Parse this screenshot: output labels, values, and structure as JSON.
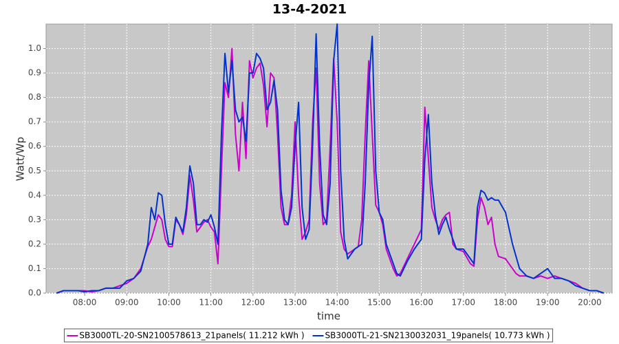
{
  "chart_data": {
    "type": "line",
    "title": "13-4-2021",
    "x_label": "time",
    "y_label": "Watt/Wp",
    "x": [
      440,
      450,
      460,
      470,
      480,
      490,
      500,
      510,
      520,
      530,
      540,
      550,
      560,
      570,
      575,
      580,
      585,
      590,
      595,
      600,
      605,
      610,
      615,
      620,
      625,
      630,
      635,
      640,
      645,
      650,
      655,
      660,
      665,
      670,
      675,
      680,
      685,
      690,
      695,
      700,
      705,
      710,
      715,
      720,
      725,
      730,
      735,
      740,
      745,
      750,
      755,
      760,
      765,
      770,
      775,
      780,
      785,
      790,
      795,
      800,
      805,
      810,
      815,
      820,
      825,
      830,
      835,
      840,
      845,
      850,
      855,
      860,
      865,
      870,
      875,
      880,
      885,
      890,
      895,
      900,
      905,
      910,
      920,
      925,
      930,
      940,
      950,
      960,
      965,
      970,
      975,
      980,
      985,
      990,
      995,
      1000,
      1005,
      1010,
      1020,
      1030,
      1035,
      1040,
      1045,
      1050,
      1055,
      1060,
      1065,
      1070,
      1080,
      1090,
      1095,
      1100,
      1110,
      1120,
      1130,
      1140,
      1150,
      1160,
      1170,
      1180,
      1190,
      1200,
      1210,
      1220
    ],
    "series": [
      {
        "name": "SB3000TL-20-SN2100578613_21panels( 11.212 kWh )",
        "color": "#cc00cc",
        "values": [
          0,
          0.01,
          0.01,
          0.01,
          0.01,
          0.005,
          0.01,
          0.02,
          0.02,
          0.03,
          0.04,
          0.06,
          0.1,
          0.19,
          0.22,
          0.27,
          0.32,
          0.3,
          0.22,
          0.19,
          0.19,
          0.3,
          0.28,
          0.24,
          0.32,
          0.48,
          0.38,
          0.25,
          0.27,
          0.29,
          0.3,
          0.27,
          0.25,
          0.12,
          0.5,
          0.86,
          0.8,
          1.0,
          0.65,
          0.5,
          0.78,
          0.55,
          0.95,
          0.88,
          0.92,
          0.94,
          0.85,
          0.68,
          0.9,
          0.88,
          0.65,
          0.35,
          0.28,
          0.28,
          0.4,
          0.7,
          0.4,
          0.22,
          0.25,
          0.3,
          0.7,
          0.92,
          0.45,
          0.28,
          0.3,
          0.6,
          0.96,
          0.7,
          0.25,
          0.18,
          0.16,
          0.17,
          0.18,
          0.19,
          0.3,
          0.65,
          0.95,
          0.65,
          0.36,
          0.33,
          0.28,
          0.18,
          0.1,
          0.07,
          0.08,
          0.14,
          0.2,
          0.26,
          0.76,
          0.55,
          0.35,
          0.3,
          0.26,
          0.3,
          0.32,
          0.33,
          0.2,
          0.18,
          0.17,
          0.12,
          0.11,
          0.3,
          0.39,
          0.35,
          0.28,
          0.31,
          0.2,
          0.15,
          0.14,
          0.1,
          0.08,
          0.07,
          0.07,
          0.06,
          0.07,
          0.06,
          0.07,
          0.06,
          0.05,
          0.04,
          0.02,
          0.01,
          0.01,
          0
        ]
      },
      {
        "name": "SB3000TL-21-SN2130032031_19panels( 10.773 kWh )",
        "color": "#0033cc",
        "values": [
          0,
          0.01,
          0.01,
          0.01,
          0.005,
          0.01,
          0.01,
          0.02,
          0.02,
          0.02,
          0.05,
          0.06,
          0.09,
          0.2,
          0.35,
          0.3,
          0.41,
          0.4,
          0.28,
          0.2,
          0.2,
          0.31,
          0.28,
          0.25,
          0.35,
          0.52,
          0.45,
          0.28,
          0.28,
          0.3,
          0.29,
          0.32,
          0.27,
          0.2,
          0.65,
          0.98,
          0.82,
          0.95,
          0.75,
          0.7,
          0.72,
          0.62,
          0.9,
          0.9,
          0.98,
          0.96,
          0.92,
          0.75,
          0.78,
          0.87,
          0.75,
          0.42,
          0.3,
          0.28,
          0.35,
          0.6,
          0.78,
          0.35,
          0.22,
          0.26,
          0.6,
          1.06,
          0.6,
          0.32,
          0.28,
          0.45,
          0.95,
          1.1,
          0.5,
          0.22,
          0.14,
          0.16,
          0.18,
          0.19,
          0.2,
          0.45,
          0.85,
          1.05,
          0.5,
          0.33,
          0.3,
          0.2,
          0.12,
          0.08,
          0.07,
          0.13,
          0.18,
          0.22,
          0.55,
          0.73,
          0.45,
          0.32,
          0.24,
          0.28,
          0.31,
          0.26,
          0.22,
          0.18,
          0.18,
          0.14,
          0.12,
          0.35,
          0.42,
          0.41,
          0.38,
          0.39,
          0.38,
          0.38,
          0.33,
          0.2,
          0.15,
          0.1,
          0.07,
          0.06,
          0.08,
          0.1,
          0.06,
          0.06,
          0.05,
          0.03,
          0.02,
          0.01,
          0.01,
          0
        ]
      }
    ],
    "xlim": [
      425,
      1232
    ],
    "xticks": [
      {
        "value": 480,
        "label": "08:00"
      },
      {
        "value": 540,
        "label": "09:00"
      },
      {
        "value": 600,
        "label": "10:00"
      },
      {
        "value": 660,
        "label": "11:00"
      },
      {
        "value": 720,
        "label": "12:00"
      },
      {
        "value": 780,
        "label": "13:00"
      },
      {
        "value": 840,
        "label": "14:00"
      },
      {
        "value": 900,
        "label": "15:00"
      },
      {
        "value": 960,
        "label": "16:00"
      },
      {
        "value": 1020,
        "label": "17:00"
      },
      {
        "value": 1080,
        "label": "18:00"
      },
      {
        "value": 1140,
        "label": "19:00"
      },
      {
        "value": 1200,
        "label": "20:00"
      }
    ],
    "ylim": [
      0,
      1.1
    ],
    "yticks": [
      {
        "value": 0,
        "label": "0.0"
      },
      0.1,
      0.2,
      0.3,
      0.4,
      0.5,
      0.6,
      0.7,
      0.8,
      0.9,
      {
        "value": 1,
        "label": "1.0"
      }
    ],
    "grid": true,
    "legend": "bottom"
  }
}
